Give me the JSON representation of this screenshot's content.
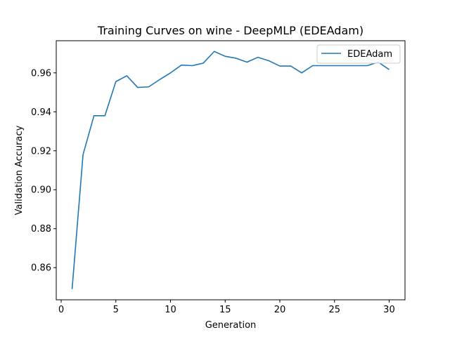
{
  "chart_data": {
    "type": "line",
    "title": "Training Curves on wine - DeepMLP (EDEAdam)",
    "xlabel": "Generation",
    "ylabel": "Validation Accuracy",
    "xlim": [
      -0.45,
      31.45
    ],
    "ylim": [
      0.8435,
      0.9765
    ],
    "xticks": [
      0,
      5,
      10,
      15,
      20,
      25,
      30
    ],
    "yticks": [
      0.86,
      0.88,
      0.9,
      0.92,
      0.94,
      0.96
    ],
    "ytick_labels": [
      "0.86",
      "0.88",
      "0.90",
      "0.92",
      "0.94",
      "0.96"
    ],
    "grid": false,
    "legend_position": "top-right",
    "series": [
      {
        "name": "EDEAdam",
        "color": "#1f77b4",
        "x": [
          1,
          2,
          3,
          4,
          5,
          6,
          7,
          8,
          9,
          10,
          11,
          12,
          13,
          14,
          15,
          16,
          17,
          18,
          19,
          20,
          21,
          22,
          23,
          24,
          25,
          26,
          27,
          28,
          29,
          30
        ],
        "y": [
          0.849,
          0.918,
          0.938,
          0.938,
          0.9555,
          0.9585,
          0.9525,
          0.9528,
          0.9565,
          0.96,
          0.964,
          0.9637,
          0.965,
          0.971,
          0.9685,
          0.9675,
          0.9655,
          0.968,
          0.9662,
          0.9635,
          0.9635,
          0.96,
          0.9637,
          0.9637,
          0.9637,
          0.9637,
          0.9637,
          0.9637,
          0.9655,
          0.9617
        ]
      }
    ]
  }
}
